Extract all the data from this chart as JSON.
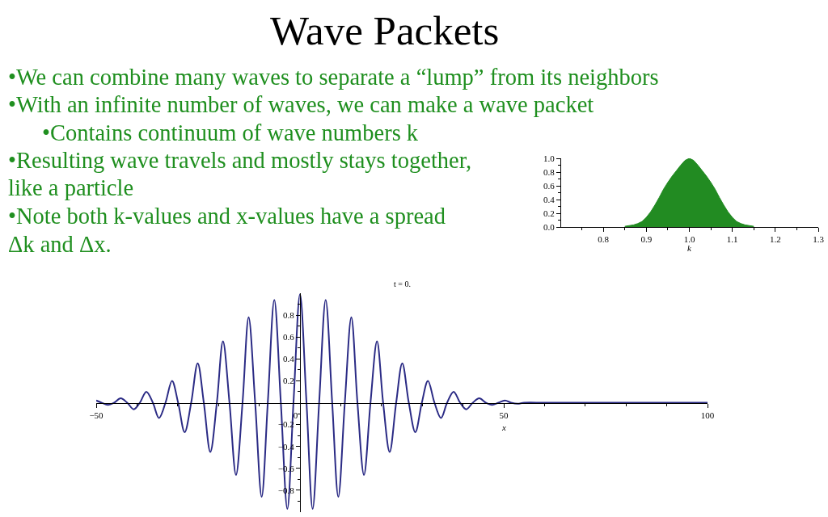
{
  "chart_data": [
    {
      "type": "other",
      "title": "Wave Packets",
      "annotations": [
        "•We can combine many waves to separate a “lump” from its neighbors",
        "•With an infinite number of waves, we can make a wave packet",
        "•Contains continuum of wave numbers k",
        "•Resulting wave travels and mostly stays together,",
        "like a particle",
        "•Note both k-values and x-values have a spread",
        "Δk and Δx."
      ]
    },
    {
      "type": "area",
      "xlabel": "k",
      "color": "#228b22",
      "x": [
        0.85,
        0.86,
        0.87,
        0.88,
        0.89,
        0.9,
        0.91,
        0.92,
        0.93,
        0.94,
        0.95,
        0.96,
        0.97,
        0.98,
        0.99,
        1.0,
        1.01,
        1.02,
        1.03,
        1.04,
        1.05,
        1.06,
        1.07,
        1.08,
        1.09,
        1.1,
        1.11,
        1.12,
        1.13,
        1.14,
        1.15
      ],
      "values": [
        0.01,
        0.02,
        0.03,
        0.05,
        0.08,
        0.14,
        0.22,
        0.32,
        0.43,
        0.55,
        0.65,
        0.74,
        0.82,
        0.9,
        0.97,
        1.0,
        0.97,
        0.9,
        0.82,
        0.74,
        0.65,
        0.55,
        0.43,
        0.32,
        0.22,
        0.14,
        0.08,
        0.05,
        0.03,
        0.02,
        0.01
      ],
      "xlim": [
        0.7,
        1.3
      ],
      "xticks": [
        {
          "value": 0.75,
          "label": null
        },
        0.8,
        {
          "value": 0.85,
          "label": null
        },
        0.9,
        {
          "value": 0.95,
          "label": null
        },
        {
          "value": 1.0,
          "label": "1.0"
        },
        {
          "value": 1.05,
          "label": null
        },
        1.1,
        {
          "value": 1.15,
          "label": null
        },
        1.2,
        {
          "value": 1.25,
          "label": null
        },
        1.3
      ],
      "ylim": [
        0,
        1
      ],
      "yticks": [
        {
          "value": 0,
          "label": "0.0"
        },
        {
          "value": 0.1,
          "label": null
        },
        0.2,
        {
          "value": 0.3,
          "label": null
        },
        0.4,
        {
          "value": 0.5,
          "label": null
        },
        0.6,
        {
          "value": 0.7,
          "label": null
        },
        0.8,
        {
          "value": 0.9,
          "label": null
        },
        {
          "value": 1,
          "label": "1.0"
        }
      ]
    },
    {
      "type": "line",
      "title": "t = 0.",
      "xlabel": "x",
      "color": "#2b2b85",
      "x": [
        -50,
        -48.7,
        -47.1,
        -45.6,
        -44.0,
        -42.4,
        -40.8,
        -39.3,
        -37.7,
        -36.1,
        -34.6,
        -33.0,
        -31.4,
        -29.9,
        -28.3,
        -26.7,
        -25.1,
        -23.6,
        -22.0,
        -20.4,
        -18.9,
        -17.3,
        -15.7,
        -14.1,
        -12.6,
        -11.0,
        -9.4,
        -7.9,
        -6.3,
        -4.7,
        -3.1,
        -1.6,
        0,
        1.6,
        3.1,
        4.7,
        6.3,
        7.9,
        9.4,
        11.0,
        12.6,
        14.1,
        15.7,
        17.3,
        18.9,
        20.4,
        22.0,
        23.6,
        25.1,
        26.7,
        28.3,
        29.9,
        31.4,
        33.0,
        34.6,
        36.1,
        37.7,
        39.3,
        40.8,
        42.4,
        44.0,
        45.6,
        47.1,
        48.7,
        50.3,
        51.8,
        53.4,
        55.0,
        60,
        70,
        80,
        90,
        100
      ],
      "values": [
        0.02,
        0,
        -0.02,
        0,
        0.04,
        0,
        -0.06,
        0,
        0.1,
        0,
        -0.14,
        0,
        0.2,
        0,
        -0.27,
        0,
        0.36,
        0,
        -0.45,
        0,
        0.56,
        0,
        -0.66,
        0,
        0.78,
        0,
        -0.86,
        0,
        0.94,
        0,
        -0.97,
        0,
        0.99,
        0,
        -0.97,
        0,
        0.94,
        0,
        -0.86,
        0,
        0.78,
        0,
        -0.66,
        0,
        0.56,
        0,
        -0.45,
        0,
        0.36,
        0,
        -0.27,
        0,
        0.2,
        0,
        -0.14,
        0,
        0.1,
        0,
        -0.06,
        0,
        0.04,
        0,
        -0.02,
        0,
        0.02,
        0,
        -0.01,
        0,
        0,
        0,
        0,
        0,
        0
      ],
      "xlim": [
        -50,
        100
      ],
      "xticks": [
        {
          "value": -50,
          "label": "−50"
        },
        {
          "value": -40,
          "label": null
        },
        {
          "value": -30,
          "label": null
        },
        {
          "value": -20,
          "label": null
        },
        {
          "value": -10,
          "label": null
        },
        0,
        {
          "value": 10,
          "label": null
        },
        {
          "value": 20,
          "label": null
        },
        {
          "value": 30,
          "label": null
        },
        {
          "value": 40,
          "label": null
        },
        50,
        {
          "value": 60,
          "label": null
        },
        {
          "value": 70,
          "label": null
        },
        {
          "value": 80,
          "label": null
        },
        {
          "value": 90,
          "label": null
        },
        100
      ],
      "ylim": [
        -1,
        1
      ],
      "yticks": [
        {
          "value": -0.9,
          "label": null
        },
        {
          "value": -0.8,
          "label": "−0.8"
        },
        {
          "value": -0.7,
          "label": null
        },
        {
          "value": -0.6,
          "label": "−0.6"
        },
        {
          "value": -0.5,
          "label": null
        },
        {
          "value": -0.4,
          "label": "−0.4"
        },
        {
          "value": -0.3,
          "label": null
        },
        {
          "value": -0.2,
          "label": "−0.2"
        },
        {
          "value": -0.1,
          "label": null
        },
        {
          "value": 0.1,
          "label": null
        },
        0.2,
        {
          "value": 0.3,
          "label": null
        },
        0.4,
        {
          "value": 0.5,
          "label": null
        },
        0.6,
        {
          "value": 0.7,
          "label": null
        },
        0.8,
        {
          "value": 0.9,
          "label": null
        }
      ]
    }
  ]
}
